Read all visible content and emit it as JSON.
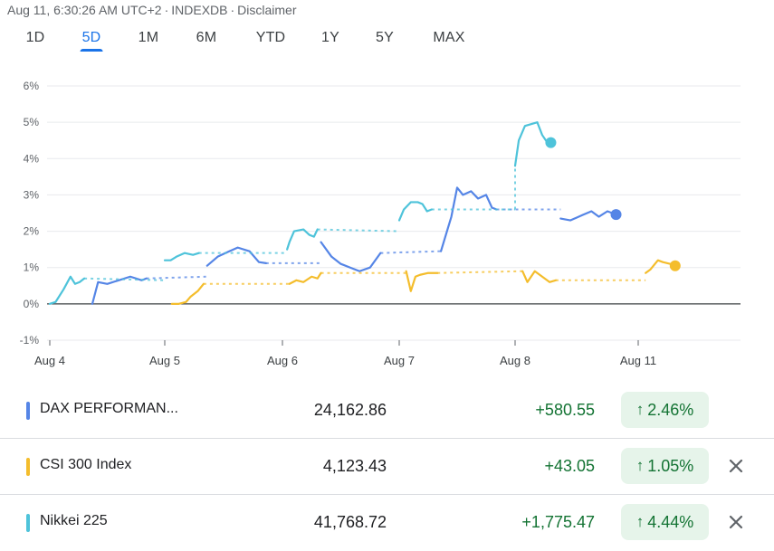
{
  "header": {
    "timestamp": "Aug 11, 6:30:26 AM UTC+2",
    "source": "INDEXDB",
    "disclaimer": "Disclaimer"
  },
  "tabs": [
    {
      "label": "1D",
      "active": false
    },
    {
      "label": "5D",
      "active": true
    },
    {
      "label": "1M",
      "active": false
    },
    {
      "label": "6M",
      "active": false
    },
    {
      "label": "YTD",
      "active": false
    },
    {
      "label": "1Y",
      "active": false
    },
    {
      "label": "5Y",
      "active": false
    },
    {
      "label": "MAX",
      "active": false
    }
  ],
  "chart_data": {
    "type": "line",
    "x_ticks": [
      "Aug 4",
      "Aug 5",
      "Aug 6",
      "Aug 7",
      "Aug 8",
      "Aug 11"
    ],
    "y_ticks": [
      "6%",
      "5%",
      "4%",
      "3%",
      "2%",
      "1%",
      "0%",
      "-1%"
    ],
    "ylim": [
      -1,
      6
    ],
    "y_unit": "%",
    "baseline": 0,
    "grid": true,
    "series": [
      {
        "name": "DAX PERFORMAN...",
        "color": "#5585e6",
        "sessions": [
          {
            "x": [
              0.37,
              0.42,
              0.5,
              0.6,
              0.7,
              0.8,
              0.84
            ],
            "y": [
              0.0,
              0.6,
              0.55,
              0.65,
              0.75,
              0.65,
              0.7
            ]
          },
          {
            "x": [
              1.36,
              1.45,
              1.55,
              1.62,
              1.72,
              1.8,
              1.86
            ],
            "y": [
              1.05,
              1.3,
              1.45,
              1.55,
              1.45,
              1.15,
              1.12
            ]
          },
          {
            "x": [
              2.33,
              2.42,
              2.5,
              2.58,
              2.66,
              2.75,
              2.84
            ],
            "y": [
              1.7,
              1.3,
              1.1,
              1.0,
              0.9,
              1.0,
              1.4
            ]
          },
          {
            "x": [
              3.36,
              3.45,
              3.5,
              3.55,
              3.62,
              3.68,
              3.75,
              3.8,
              3.84
            ],
            "y": [
              1.45,
              2.4,
              3.2,
              3.0,
              3.1,
              2.9,
              3.0,
              2.65,
              2.6
            ]
          },
          {
            "x": [
              4.37,
              4.45,
              4.55,
              4.62,
              4.68,
              4.75,
              4.82
            ],
            "y": [
              2.35,
              2.3,
              2.45,
              2.55,
              2.4,
              2.55,
              2.46
            ]
          }
        ],
        "gaps": [
          {
            "x": [
              0.84,
              1.36
            ],
            "y": [
              0.7,
              0.75
            ]
          },
          {
            "x": [
              1.86,
              2.33
            ],
            "y": [
              1.12,
              1.12
            ]
          },
          {
            "x": [
              2.84,
              3.36
            ],
            "y": [
              1.4,
              1.45
            ]
          },
          {
            "x": [
              3.84,
              4.37
            ],
            "y": [
              2.6,
              2.6
            ]
          }
        ]
      },
      {
        "name": "CSI 300 Index",
        "color": "#f4bd2c",
        "sessions": [
          {
            "x": [
              1.06,
              1.12,
              1.18,
              1.22,
              1.28,
              1.33
            ],
            "y": [
              0.0,
              0.0,
              0.05,
              0.2,
              0.35,
              0.55
            ]
          },
          {
            "x": [
              2.06,
              2.12,
              2.18,
              2.25,
              2.3,
              2.33
            ],
            "y": [
              0.55,
              0.65,
              0.6,
              0.75,
              0.7,
              0.85
            ]
          },
          {
            "x": [
              3.06,
              3.1,
              3.14,
              3.18,
              3.25,
              3.33
            ],
            "y": [
              0.9,
              0.35,
              0.75,
              0.8,
              0.85,
              0.85
            ]
          },
          {
            "x": [
              4.06,
              4.1,
              4.16,
              4.22,
              4.28,
              4.33
            ],
            "y": [
              0.9,
              0.6,
              0.9,
              0.75,
              0.6,
              0.65
            ]
          },
          {
            "x": [
              5.06,
              5.1,
              5.16,
              5.2,
              5.26,
              5.3
            ],
            "y": [
              0.85,
              0.95,
              1.2,
              1.15,
              1.1,
              1.05
            ]
          }
        ],
        "gaps": [
          {
            "x": [
              1.33,
              2.06
            ],
            "y": [
              0.55,
              0.55
            ]
          },
          {
            "x": [
              2.33,
              3.06
            ],
            "y": [
              0.85,
              0.85
            ]
          },
          {
            "x": [
              3.33,
              4.06
            ],
            "y": [
              0.85,
              0.9
            ]
          },
          {
            "x": [
              4.33,
              5.06
            ],
            "y": [
              0.65,
              0.65
            ]
          }
        ]
      },
      {
        "name": "Nikkei 225",
        "color": "#4ec3da",
        "sessions": [
          {
            "x": [
              0.0,
              0.05,
              0.12,
              0.18,
              0.22,
              0.26,
              0.3
            ],
            "y": [
              0.0,
              0.05,
              0.4,
              0.75,
              0.55,
              0.6,
              0.7
            ]
          },
          {
            "x": [
              1.0,
              1.05,
              1.1,
              1.17,
              1.24,
              1.29
            ],
            "y": [
              1.2,
              1.2,
              1.3,
              1.4,
              1.35,
              1.4
            ]
          },
          {
            "x": [
              2.04,
              2.06,
              2.1,
              2.18,
              2.23,
              2.27,
              2.3
            ],
            "y": [
              1.5,
              1.7,
              2.0,
              2.05,
              1.9,
              1.85,
              2.05
            ]
          },
          {
            "x": [
              3.0,
              3.04,
              3.1,
              3.16,
              3.2,
              3.24,
              3.28
            ],
            "y": [
              2.3,
              2.6,
              2.8,
              2.8,
              2.75,
              2.55,
              2.6
            ]
          },
          {
            "x": [
              4.0,
              4.03,
              4.08,
              4.13,
              4.18,
              4.22,
              4.26,
              4.29
            ],
            "y": [
              3.8,
              4.5,
              4.9,
              4.95,
              5.0,
              4.65,
              4.45,
              4.44
            ]
          }
        ],
        "gaps": [
          {
            "x": [
              0.3,
              1.0
            ],
            "y": [
              0.7,
              0.65
            ]
          },
          {
            "x": [
              1.29,
              2.04
            ],
            "y": [
              1.4,
              1.4
            ]
          },
          {
            "x": [
              2.3,
              3.0
            ],
            "y": [
              2.05,
              2.0
            ]
          },
          {
            "x": [
              3.28,
              4.0
            ],
            "y": [
              2.6,
              2.6
            ]
          },
          {
            "x": [
              4.0,
              4.0
            ],
            "y": [
              2.6,
              3.8
            ]
          }
        ]
      }
    ]
  },
  "rows": [
    {
      "name": "DAX PERFORMAN...",
      "color": "#5585e6",
      "price": "24,162.86",
      "change": "+580.55",
      "percent": "2.46%",
      "removable": false
    },
    {
      "name": "CSI 300 Index",
      "color": "#f4bd2c",
      "price": "4,123.43",
      "change": "+43.05",
      "percent": "1.05%",
      "removable": true
    },
    {
      "name": "Nikkei 225",
      "color": "#4ec3da",
      "price": "41,768.72",
      "change": "+1,775.47",
      "percent": "4.44%",
      "removable": true
    }
  ],
  "icons": {
    "up_arrow": "arrow-upward-icon",
    "remove": "close-icon"
  }
}
